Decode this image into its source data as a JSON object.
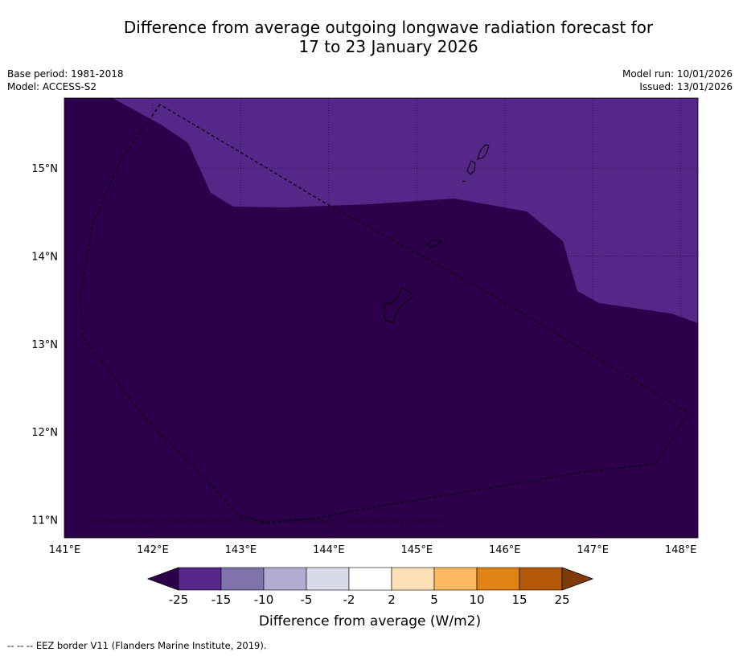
{
  "title": {
    "line1": "Difference from average outgoing longwave radiation forecast for",
    "line2": "17 to 23 January 2026"
  },
  "meta": {
    "base_period": "Base period: 1981-2018",
    "model": "Model: ACCESS-S2",
    "model_run": "Model run: 10/01/2026",
    "issued": "Issued: 13/01/2026"
  },
  "map": {
    "lon_labels": [
      "141°E",
      "142°E",
      "143°E",
      "144°E",
      "145°E",
      "146°E",
      "147°E",
      "148°E"
    ],
    "lat_labels": [
      "15°N",
      "14°N",
      "13°N",
      "12°N",
      "11°N"
    ],
    "lon_range": [
      141,
      148.2
    ],
    "lat_range": [
      10.8,
      15.8
    ],
    "copyright": "© Commonwealth of Australia 2026, Bureau of Meteorology, supported by COSPPac",
    "colors": {
      "below_minus25": "#2d004b",
      "minus25_to_minus15": "#542788",
      "ocean_frame": "#000000"
    }
  },
  "colorbar": {
    "ticks": [
      "-25",
      "-15",
      "-10",
      "-5",
      "-2",
      "2",
      "5",
      "10",
      "15",
      "25"
    ],
    "colors": [
      "#2d004b",
      "#542788",
      "#8073ac",
      "#b2abd2",
      "#d8daeb",
      "#ffffff",
      "#fee0b6",
      "#fdb863",
      "#e08214",
      "#b35806",
      "#7f3b08"
    ],
    "label": "Difference from average (W/m2)"
  },
  "footer": {
    "legend": "--  --  -- EEZ border V11 (Flanders Marine Institute, 2019)."
  }
}
